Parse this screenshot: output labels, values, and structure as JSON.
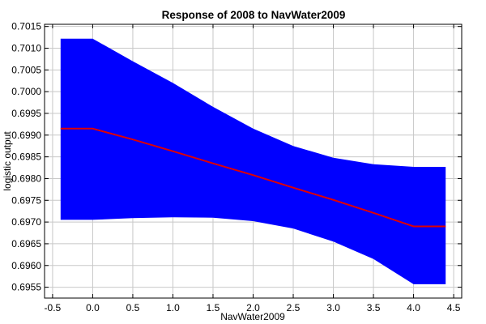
{
  "chart_data": {
    "type": "area",
    "title": "Response of 2008 to NavWater2009",
    "xlabel": "NavWater2009",
    "ylabel": "logistic output",
    "xlim": [
      -0.6,
      4.6
    ],
    "ylim": [
      0.69525,
      0.70155
    ],
    "xticks": [
      -0.5,
      0.0,
      0.5,
      1.0,
      1.5,
      2.0,
      2.5,
      3.0,
      3.5,
      4.0,
      4.5
    ],
    "xtick_labels": [
      "-0.5",
      "0.0",
      "0.5",
      "1.0",
      "1.5",
      "2.0",
      "2.5",
      "3.0",
      "3.5",
      "4.0",
      "4.5"
    ],
    "yticks": [
      0.6955,
      0.696,
      0.6965,
      0.697,
      0.6975,
      0.698,
      0.6985,
      0.699,
      0.6995,
      0.7,
      0.7005,
      0.701,
      0.7015
    ],
    "ytick_labels": [
      "0.6955",
      "0.6960",
      "0.6965",
      "0.6970",
      "0.6975",
      "0.6980",
      "0.6985",
      "0.6990",
      "0.6995",
      "0.7000",
      "0.7005",
      "0.7010",
      "0.7015"
    ],
    "grid": true,
    "series": [
      {
        "role": "confidence-band",
        "color": "#0000ff",
        "x": [
          -0.4,
          0.0,
          0.5,
          1.0,
          1.5,
          2.0,
          2.5,
          3.0,
          3.5,
          4.0,
          4.4
        ],
        "lower": [
          0.69705,
          0.69705,
          0.69709,
          0.69711,
          0.6971,
          0.69702,
          0.69685,
          0.69655,
          0.69615,
          0.69557,
          0.69557
        ],
        "upper": [
          0.70122,
          0.70122,
          0.7007,
          0.7002,
          0.69965,
          0.69915,
          0.69875,
          0.69848,
          0.69833,
          0.69827,
          0.69827
        ]
      },
      {
        "role": "response-line",
        "color": "#e00000",
        "x": [
          -0.4,
          0.0,
          0.5,
          1.0,
          1.5,
          2.0,
          2.5,
          3.0,
          3.5,
          4.0,
          4.4
        ],
        "values": [
          0.69915,
          0.69915,
          0.6989,
          0.69863,
          0.69835,
          0.69808,
          0.69779,
          0.69751,
          0.69721,
          0.6969,
          0.6969
        ]
      }
    ]
  }
}
